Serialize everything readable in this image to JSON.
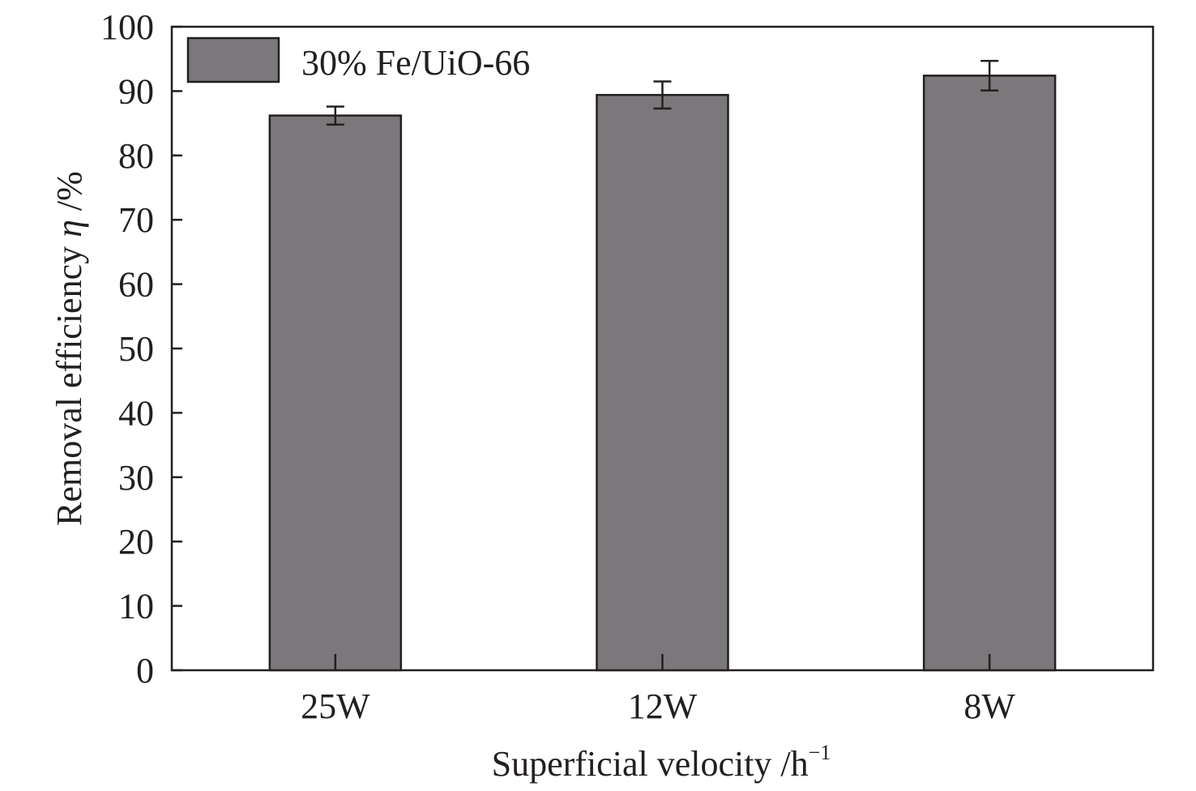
{
  "chart_data": {
    "type": "bar",
    "categories": [
      "25W",
      "12W",
      "8W"
    ],
    "series": [
      {
        "name": "30% Fe/UiO-66",
        "values": [
          86.2,
          89.4,
          92.4
        ],
        "errors": [
          1.4,
          2.1,
          2.3
        ],
        "color": "#7a787a"
      }
    ],
    "ylim": [
      0,
      100
    ],
    "yticks": [
      0,
      10,
      20,
      30,
      40,
      50,
      60,
      70,
      80,
      90,
      100
    ],
    "ylabel": {
      "prefix": "Removal efficiency ",
      "symbol": "η",
      "suffix": " /%"
    },
    "xlabel": {
      "base": "Superficial velocity /h",
      "superscript": "−1"
    },
    "legend_position": "top-left",
    "grid": false,
    "colors": {
      "axis": "#231f20",
      "bar_fill": "#7a787a",
      "bar_stroke": "#231f20"
    }
  }
}
